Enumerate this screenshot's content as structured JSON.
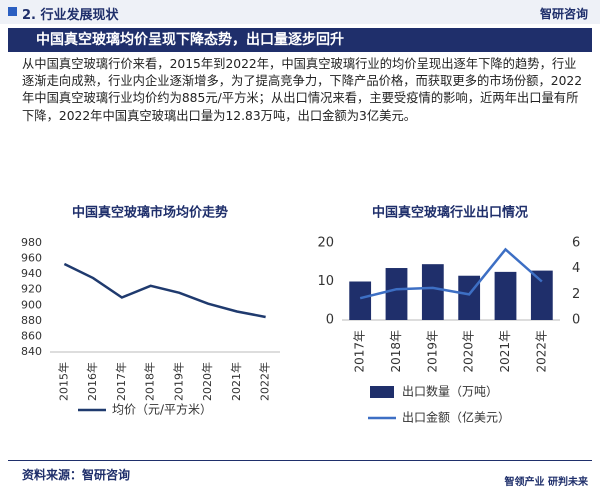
{
  "header": {
    "section": "2. 行业发展现状",
    "logo": "智研咨询"
  },
  "banner": {
    "title": "中国真空玻璃均价呈现下降态势，出口量逐步回升"
  },
  "paragraph": "从中国真空玻璃行价来看，2015年到2022年，中国真空玻璃行业的均价呈现出逐年下降的趋势，行业逐渐走向成熟，行业内企业逐渐增多，为了提高竞争力，下降产品价格，而获取更多的市场份额，2022年中国真空玻璃行业均价约为885元/平方米；从出口情况来看，主要受疫情的影响，近两年出口量有所下降，2022年中国真空玻璃出口量为12.83万吨，出口金额为3亿美元。",
  "chart_data": [
    {
      "type": "line",
      "title": "中国真空玻璃市场均价走势",
      "categories": [
        "2015年",
        "2016年",
        "2017年",
        "2018年",
        "2019年",
        "2020年",
        "2021年",
        "2022年"
      ],
      "series": [
        {
          "name": "均价（元/平方米）",
          "color": "#1f3a6e",
          "values": [
            953,
            935,
            910,
            925,
            916,
            902,
            892,
            885
          ]
        }
      ],
      "ylim": [
        840,
        980
      ],
      "yticks": [
        840,
        860,
        880,
        900,
        920,
        940,
        960,
        980
      ]
    },
    {
      "type": "bar",
      "title": "中国真空玻璃行业出口情况",
      "categories": [
        "2017年",
        "2018年",
        "2019年",
        "2020年",
        "2021年",
        "2022年"
      ],
      "series": [
        {
          "name": "出口数量（万吨）",
          "type": "bar",
          "color": "#1f2f6b",
          "values": [
            10,
            13.5,
            14.5,
            11.5,
            12.5,
            12.83
          ]
        },
        {
          "name": "出口金额（亿美元）",
          "type": "line",
          "axis": "y2",
          "color": "#3d6fc4",
          "values": [
            1.7,
            2.4,
            2.5,
            2.0,
            5.5,
            3
          ]
        }
      ],
      "ylim": [
        0,
        20
      ],
      "yticks": [
        0,
        10,
        20
      ],
      "y2lim": [
        0,
        6
      ],
      "y2ticks": [
        0,
        2,
        4,
        6
      ]
    }
  ],
  "source": "资料来源：智研咨询",
  "footer": {
    "left": "智领产业",
    "right": "研判未来"
  }
}
